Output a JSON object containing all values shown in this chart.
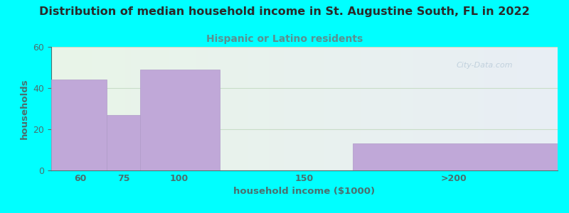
{
  "title": "Distribution of median household income in St. Augustine South, FL in 2022",
  "subtitle": "Hispanic or Latino residents",
  "xlabel": "household income ($1000)",
  "ylabel": "households",
  "background_color": "#00FFFF",
  "plot_bg_left": "#e8f5e8",
  "plot_bg_right": "#e8eef5",
  "bar_color": "#c0a8d8",
  "bar_edge_color": "#b09ac8",
  "watermark": "City-Data.com",
  "values": [
    44,
    27,
    49,
    0,
    13
  ],
  "bin_edges": [
    45,
    68,
    82,
    115,
    170,
    255
  ],
  "ylim": [
    0,
    60
  ],
  "yticks": [
    0,
    20,
    40,
    60
  ],
  "xtick_positions": [
    57,
    75,
    98,
    150,
    212
  ],
  "xtick_labels": [
    "60",
    "75",
    "100",
    "150",
    ">200"
  ],
  "title_color": "#2a2a2a",
  "subtitle_color": "#5a9090",
  "axis_label_color": "#4a7070",
  "tick_color": "#4a7070",
  "grid_color": "#c8ddc8",
  "title_fontsize": 11.5,
  "subtitle_fontsize": 10,
  "label_fontsize": 9.5,
  "tick_fontsize": 9
}
